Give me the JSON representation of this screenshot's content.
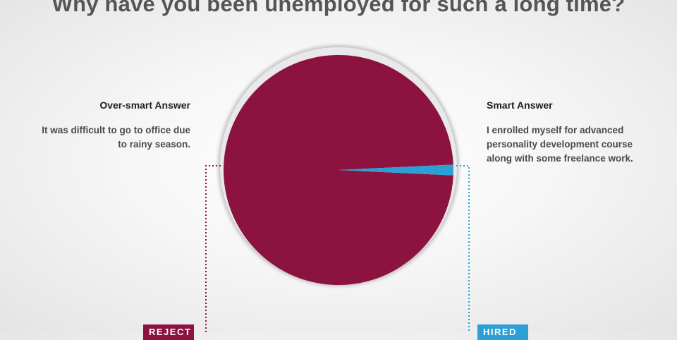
{
  "title": "Why have you been unemployed for such a long time?",
  "left": {
    "heading": "Over-smart Answer",
    "body_lines": [
      "It  was difficult to go to office due",
      "to rainy season."
    ],
    "tag": "REJECT"
  },
  "right": {
    "heading": "Smart Answer",
    "body_lines": [
      "I enrolled myself for advanced",
      "personality development course",
      "along with some freelance work."
    ],
    "tag": "HIRED"
  },
  "colors": {
    "reject": "#8c1240",
    "hired": "#2b9fd6",
    "title": "#555555",
    "reject_connector": "#8c1240",
    "hired_connector": "#2b9fd6"
  },
  "chart_data": {
    "type": "pie",
    "title": "Why have you been unemployed for such a long time?",
    "slices": [
      {
        "label": "Over-smart Answer",
        "value": 98.5,
        "color": "#8c1240"
      },
      {
        "label": "Smart Answer",
        "value": 1.5,
        "color": "#2b9fd6"
      }
    ],
    "legend": "none"
  }
}
